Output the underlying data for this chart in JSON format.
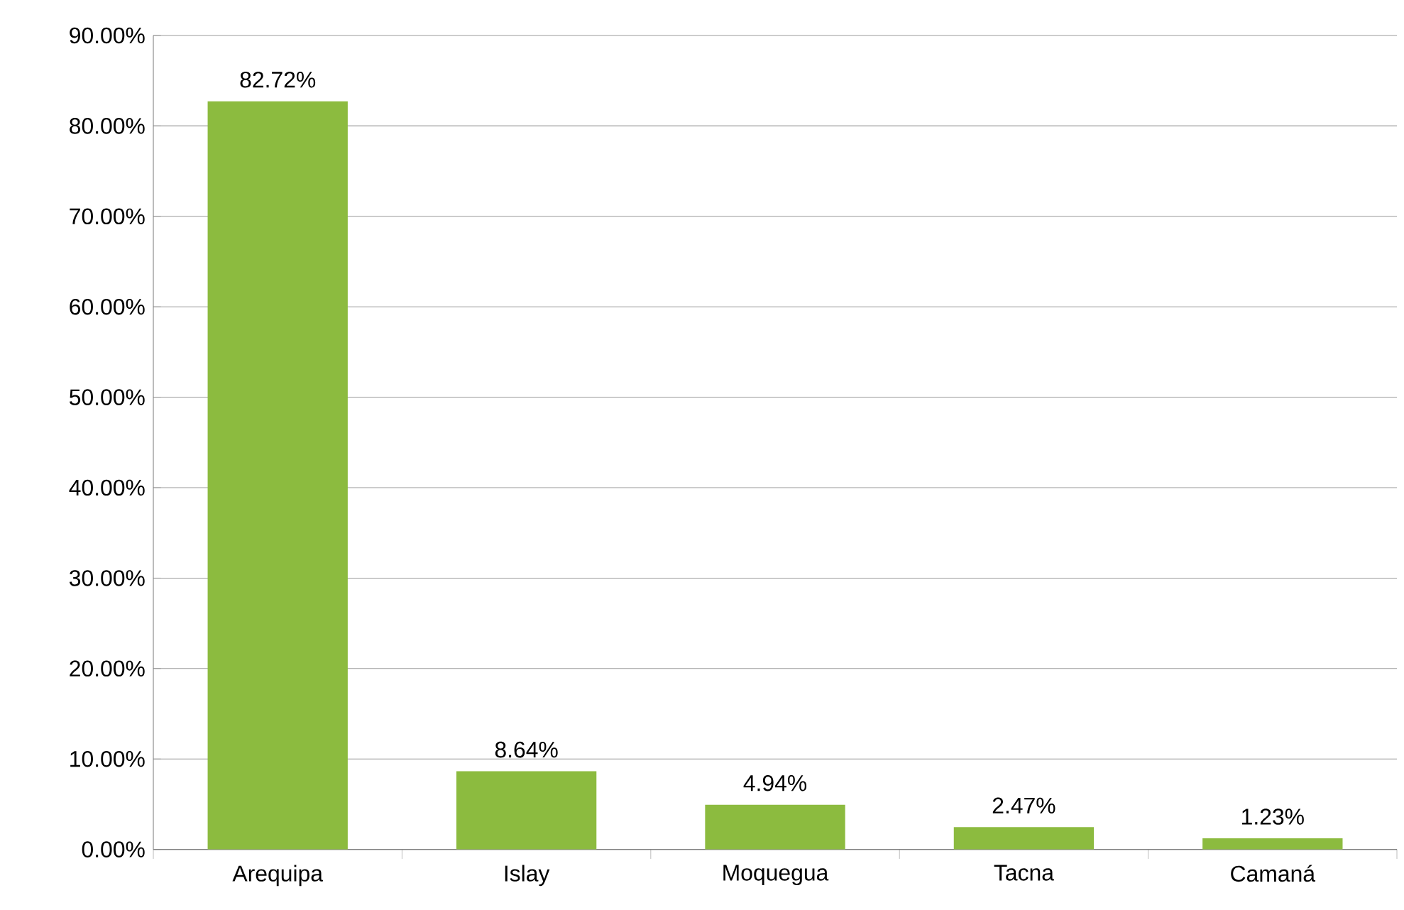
{
  "chart_data": {
    "type": "bar",
    "categories": [
      "Arequipa",
      "Islay",
      "Moquegua",
      "Tacna",
      "Camaná"
    ],
    "values": [
      82.72,
      8.64,
      4.94,
      2.47,
      1.23
    ],
    "value_labels": [
      "82.72%",
      "8.64%",
      "4.94%",
      "2.47%",
      "1.23%"
    ],
    "color": "#8cbb3f",
    "ylim": [
      0,
      90
    ],
    "yticks": [
      {
        "value": 0,
        "label": "0.00%"
      },
      {
        "value": 10,
        "label": "10.00%"
      },
      {
        "value": 20,
        "label": "20.00%"
      },
      {
        "value": 30,
        "label": "30.00%"
      },
      {
        "value": 40,
        "label": "40.00%"
      },
      {
        "value": 50,
        "label": "50.00%"
      },
      {
        "value": 60,
        "label": "60.00%"
      },
      {
        "value": 70,
        "label": "70.00%"
      },
      {
        "value": 80,
        "label": "80.00%"
      },
      {
        "value": 90,
        "label": "90.00%"
      }
    ],
    "grid": "y"
  }
}
